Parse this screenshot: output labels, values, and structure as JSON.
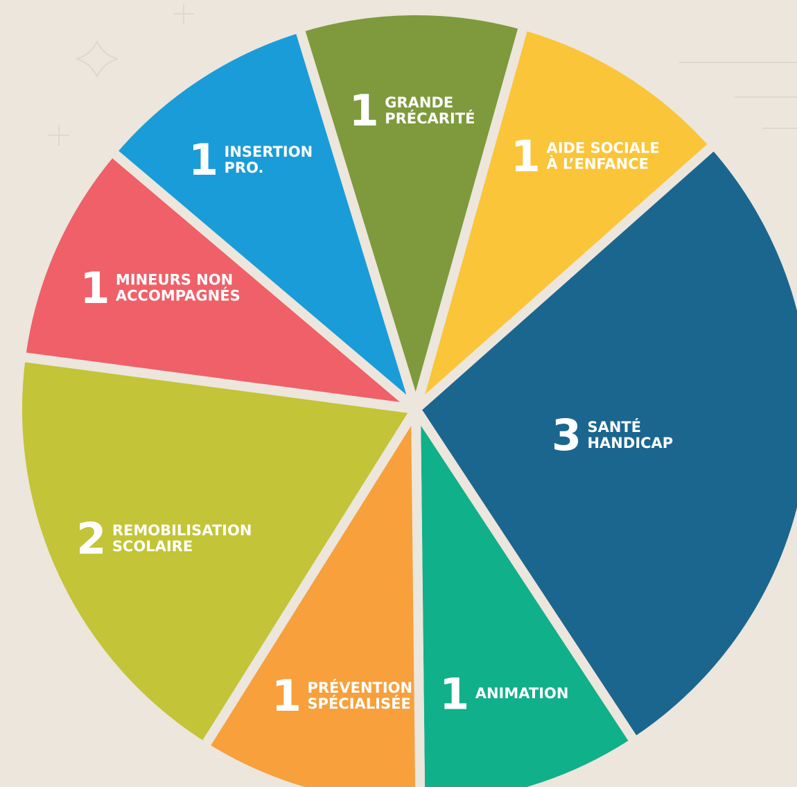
{
  "chart_data": {
    "type": "pie",
    "categories": [
      [
        "GRANDE",
        "PRÉCARITÉ"
      ],
      [
        "AIDE SOCIALE",
        "À L’ENFANCE"
      ],
      [
        "SANTÉ",
        "HANDICAP"
      ],
      [
        "ANIMATION"
      ],
      [
        "PRÉVENTION",
        "SPÉCIALISÉE"
      ],
      [
        "REMOBILISATION",
        "SCOLAIRE"
      ],
      [
        "MINEURS NON",
        "ACCOMPAGNÉS"
      ],
      [
        "INSERTION",
        "PRO."
      ]
    ],
    "values": [
      1,
      1,
      3,
      1,
      1,
      2,
      1,
      1
    ],
    "colors": [
      "#7e9a3c",
      "#fbc53a",
      "#1b668f",
      "#10b08a",
      "#f7a03c",
      "#c3c437",
      "#ef6068",
      "#1a9cd9"
    ]
  }
}
